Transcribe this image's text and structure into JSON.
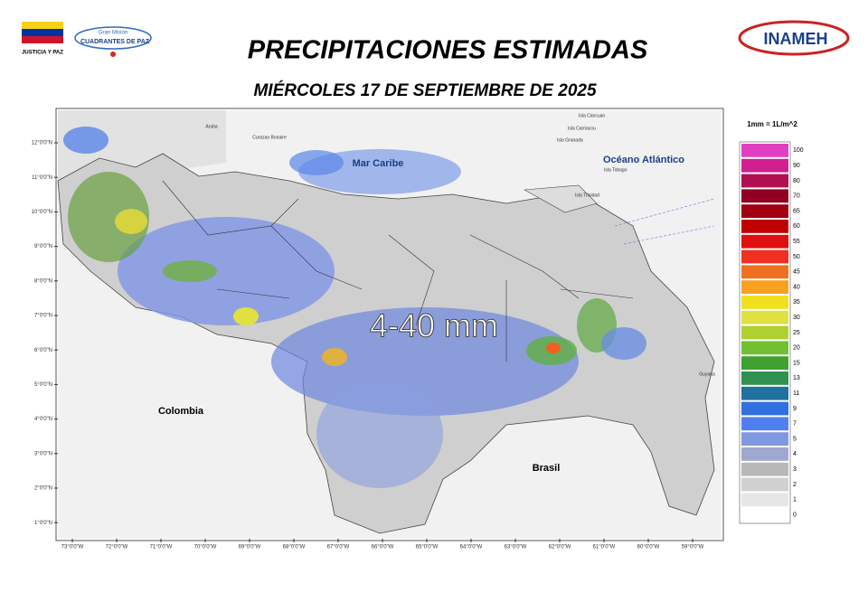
{
  "header": {
    "title": "PRECIPITACIONES ESTIMADAS",
    "subtitle": "MIÉRCOLES 17 DE SEPTIEMBRE DE 2025",
    "logo_left_caption": "JUSTICIA Y PAZ",
    "logo_mid_top": "Gran Misión",
    "logo_mid_bottom": "CUADRANTES DE PAZ",
    "logo_right": "INAMEH"
  },
  "map": {
    "headline": "4-40 mm",
    "places": [
      {
        "label": "Mar Caribe"
      },
      {
        "label": "Océano Atlántico"
      },
      {
        "label": "Colombia"
      },
      {
        "label": "Brasil"
      },
      {
        "label": "Guyana"
      },
      {
        "label": "Aruba"
      },
      {
        "label": "Curazao Bonaire"
      },
      {
        "label": "Isla Cancuan"
      },
      {
        "label": "Isla Carriacou"
      },
      {
        "label": "Isla Granada"
      },
      {
        "label": "Isla Tobago"
      },
      {
        "label": "Isla Trinidad"
      }
    ],
    "lat_ticks": [
      {
        "value": 12,
        "label": "12°0'0\"N"
      },
      {
        "value": 11,
        "label": "11°0'0\"N"
      },
      {
        "value": 10,
        "label": "10°0'0\"N"
      },
      {
        "value": 9,
        "label": "9°0'0\"N"
      },
      {
        "value": 8,
        "label": "8°0'0\"N"
      },
      {
        "value": 7,
        "label": "7°0'0\"N"
      },
      {
        "value": 6,
        "label": "6°0'0\"N"
      },
      {
        "value": 5,
        "label": "5°0'0\"N"
      },
      {
        "value": 4,
        "label": "4°0'0\"N"
      },
      {
        "value": 3,
        "label": "3°0'0\"N"
      },
      {
        "value": 2,
        "label": "2°0'0\"N"
      },
      {
        "value": 1,
        "label": "1°0'0\"N"
      }
    ],
    "lon_ticks": [
      {
        "value": 73,
        "label": "73°0'0\"W"
      },
      {
        "value": 72,
        "label": "72°0'0\"W"
      },
      {
        "value": 71,
        "label": "71°0'0\"W"
      },
      {
        "value": 70,
        "label": "70°0'0\"W"
      },
      {
        "value": 69,
        "label": "69°0'0\"W"
      },
      {
        "value": 68,
        "label": "68°0'0\"W"
      },
      {
        "value": 67,
        "label": "67°0'0\"W"
      },
      {
        "value": 66,
        "label": "66°0'0\"W"
      },
      {
        "value": 65,
        "label": "65°0'0\"W"
      },
      {
        "value": 64,
        "label": "64°0'0\"W"
      },
      {
        "value": 63,
        "label": "63°0'0\"W"
      },
      {
        "value": 62,
        "label": "62°0'0\"W"
      },
      {
        "value": 61,
        "label": "61°0'0\"W"
      },
      {
        "value": 60,
        "label": "60°0'0\"W"
      },
      {
        "value": 59,
        "label": "59°0'0\"W"
      }
    ]
  },
  "legend": {
    "title": "1mm = 1L/m^2",
    "items": [
      {
        "label": 100,
        "color": "#e040c0"
      },
      {
        "label": 90,
        "color": "#d0208f"
      },
      {
        "label": 80,
        "color": "#b01050"
      },
      {
        "label": 70,
        "color": "#900020"
      },
      {
        "label": 65,
        "color": "#a00010"
      },
      {
        "label": 60,
        "color": "#c00000"
      },
      {
        "label": 55,
        "color": "#e01010"
      },
      {
        "label": 50,
        "color": "#f03020"
      },
      {
        "label": 45,
        "color": "#f07020"
      },
      {
        "label": 40,
        "color": "#f8a020"
      },
      {
        "label": 35,
        "color": "#f0e020"
      },
      {
        "label": 30,
        "color": "#e0e040"
      },
      {
        "label": 25,
        "color": "#b0d030"
      },
      {
        "label": 20,
        "color": "#70c030"
      },
      {
        "label": 15,
        "color": "#40a030"
      },
      {
        "label": 13,
        "color": "#309050"
      },
      {
        "label": 11,
        "color": "#2070a0"
      },
      {
        "label": 9,
        "color": "#3070e0"
      },
      {
        "label": 7,
        "color": "#5080f0"
      },
      {
        "label": 5,
        "color": "#8098e0"
      },
      {
        "label": 4,
        "color": "#a0a8d0"
      },
      {
        "label": 3,
        "color": "#b8b8b8"
      },
      {
        "label": 2,
        "color": "#d0d0d0"
      },
      {
        "label": 1,
        "color": "#e6e6e6"
      },
      {
        "label": 0,
        "color": "#ffffff"
      }
    ]
  }
}
